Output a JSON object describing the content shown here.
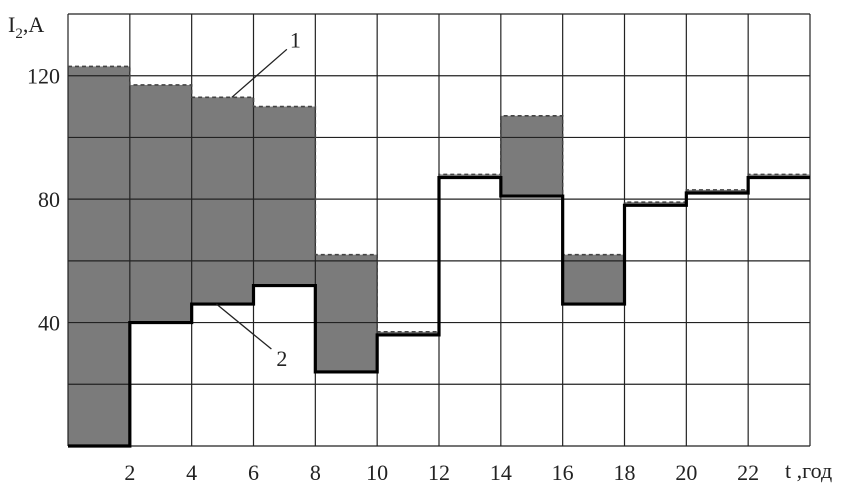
{
  "chart_data": {
    "type": "line",
    "ylabel": "I",
    "ylabel_subscript": "2",
    "ylabel_unit": ",A",
    "xlabel": "t ,год",
    "xlim": [
      0,
      24
    ],
    "ylim": [
      0,
      130
    ],
    "grid": true,
    "x_ticks": [
      2,
      4,
      6,
      8,
      10,
      12,
      14,
      16,
      18,
      20,
      22
    ],
    "y_ticks": [
      40,
      80,
      120
    ],
    "series": [
      {
        "name": "1",
        "style": "dashed",
        "x": [
          0,
          2,
          4,
          6,
          8,
          10,
          12,
          14,
          16,
          18,
          20,
          22,
          24
        ],
        "values": [
          123,
          117,
          113,
          110,
          62,
          37,
          88,
          107,
          62,
          79,
          83,
          88,
          88
        ]
      },
      {
        "name": "2",
        "style": "solid-thick",
        "x": [
          0,
          2,
          4,
          6,
          8,
          10,
          12,
          14,
          16,
          18,
          20,
          22,
          24
        ],
        "values": [
          0,
          40,
          46,
          52,
          24,
          36,
          87,
          81,
          46,
          78,
          82,
          87,
          87
        ]
      }
    ],
    "callouts": [
      {
        "label": "1",
        "x": 5.3,
        "y": 113
      },
      {
        "label": "2",
        "x": 4.8,
        "y": 46
      }
    ]
  },
  "colors": {
    "fill": "#7b7b7b",
    "grid": "#222222",
    "line1": "#444444",
    "line2": "#000000"
  }
}
